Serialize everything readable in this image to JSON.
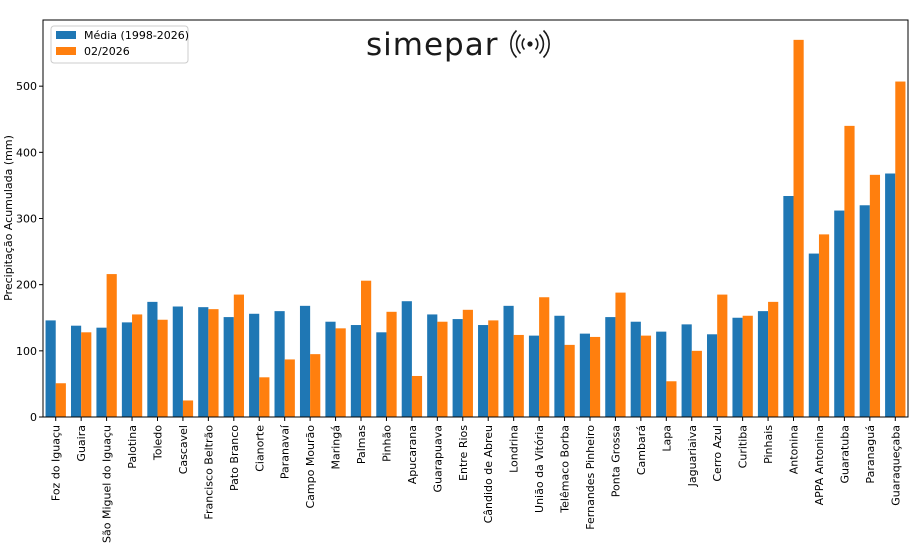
{
  "brand": {
    "name": "simepar",
    "logo_icon": "radio-waves-icon"
  },
  "chart_data": {
    "type": "bar",
    "ylabel": "Precipitação Acumulada (mm)",
    "xlabel": "",
    "ylim": [
      0,
      600
    ],
    "yticks": [
      0,
      100,
      200,
      300,
      400,
      500
    ],
    "legend_position": "top-left",
    "categories": [
      "Foz do Iguaçu",
      "Guaira",
      "São Miguel do Iguaçu",
      "Palotina",
      "Toledo",
      "Cascavel",
      "Francisco Beltrão",
      "Pato Branco",
      "Cianorte",
      "Paranavaí",
      "Campo Mourão",
      "Maringá",
      "Palmas",
      "Pinhão",
      "Apucarana",
      "Guarapuava",
      "Entre Rios",
      "Cândido de Abreu",
      "Londrina",
      "União da Vitória",
      "Telêmaco Borba",
      "Fernandes Pinheiro",
      "Ponta Grossa",
      "Cambará",
      "Lapa",
      "Jaguariaiva",
      "Cerro Azul",
      "Curitiba",
      "Pinhais",
      "Antonina",
      "APPA Antonina",
      "Guaratuba",
      "Paranaguá",
      "Guaraqueçaba"
    ],
    "series": [
      {
        "name": "Média (1998-2026)",
        "color": "#1f77b4",
        "values": [
          146,
          138,
          135,
          143,
          174,
          167,
          166,
          151,
          156,
          160,
          168,
          144,
          139,
          128,
          175,
          155,
          148,
          139,
          168,
          123,
          153,
          126,
          151,
          144,
          129,
          140,
          125,
          150,
          160,
          334,
          247,
          312,
          320,
          368
        ]
      },
      {
        "name": "02/2026",
        "color": "#ff7f0e",
        "values": [
          51,
          128,
          216,
          155,
          147,
          25,
          163,
          185,
          60,
          87,
          95,
          134,
          206,
          159,
          62,
          144,
          162,
          146,
          124,
          181,
          109,
          121,
          188,
          123,
          54,
          100,
          185,
          153,
          174,
          570,
          276,
          440,
          366,
          507
        ]
      }
    ]
  }
}
